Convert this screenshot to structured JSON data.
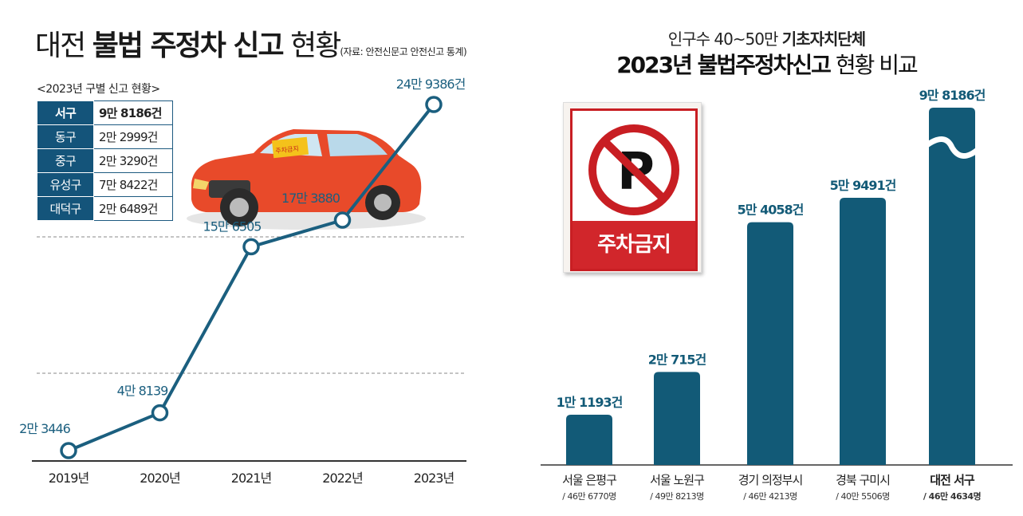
{
  "left": {
    "title_main": "대전",
    "title_bold": "불법 주정차 신고",
    "title_tail": "현황",
    "source_note": "(자료: 안전신문고 안전신고 통계)",
    "table_caption": "<2023년 구별 신고 현황>",
    "districts": [
      {
        "name": "서구",
        "value": "9만 8186건"
      },
      {
        "name": "동구",
        "value": "2만 2999건"
      },
      {
        "name": "중구",
        "value": "2만 3290건"
      },
      {
        "name": "유성구",
        "value": "7만 8422건"
      },
      {
        "name": "대덕구",
        "value": "2만 6489건"
      }
    ],
    "car_sign_text": "주차금지"
  },
  "right": {
    "title_line1_a": "인구수 40~50만",
    "title_line1_b": "기초자치단체",
    "title_line2_bold": "2023년 불법주정차신고",
    "title_line2_tail": "현황 비교",
    "sign_text": "주차금지"
  },
  "chart_data": [
    {
      "type": "line",
      "categories": [
        "2019년",
        "2020년",
        "2021년",
        "2022년",
        "2023년"
      ],
      "values": [
        23446,
        48139,
        156505,
        173880,
        249386
      ],
      "data_labels": [
        "2만 3446",
        "4만 8139",
        "15만 6505",
        "17만 3880",
        "24만 9386건"
      ],
      "colors": {
        "line": "#1b5f7f",
        "marker_fill": "#ffffff"
      }
    },
    {
      "type": "bar",
      "categories": [
        "서울 은평구",
        "서울 노원구",
        "경기 의정부시",
        "경북 구미시",
        "대전 서구"
      ],
      "sub_labels": [
        "/ 46만 6770명",
        "/ 49만 8213명",
        "/ 46만 4213명",
        "/ 40만 5506명",
        "/ 46만 4634명"
      ],
      "values": [
        11193,
        20715,
        54058,
        59491,
        98186
      ],
      "data_labels": [
        "1만 1193건",
        "2만 715건",
        "5만 4058건",
        "5만 9491건",
        "9만 8186건"
      ],
      "highlight": "대전 서구",
      "axis_break_on": "대전 서구",
      "colors": {
        "bar": "#125a77",
        "label": "#125a77"
      }
    }
  ]
}
